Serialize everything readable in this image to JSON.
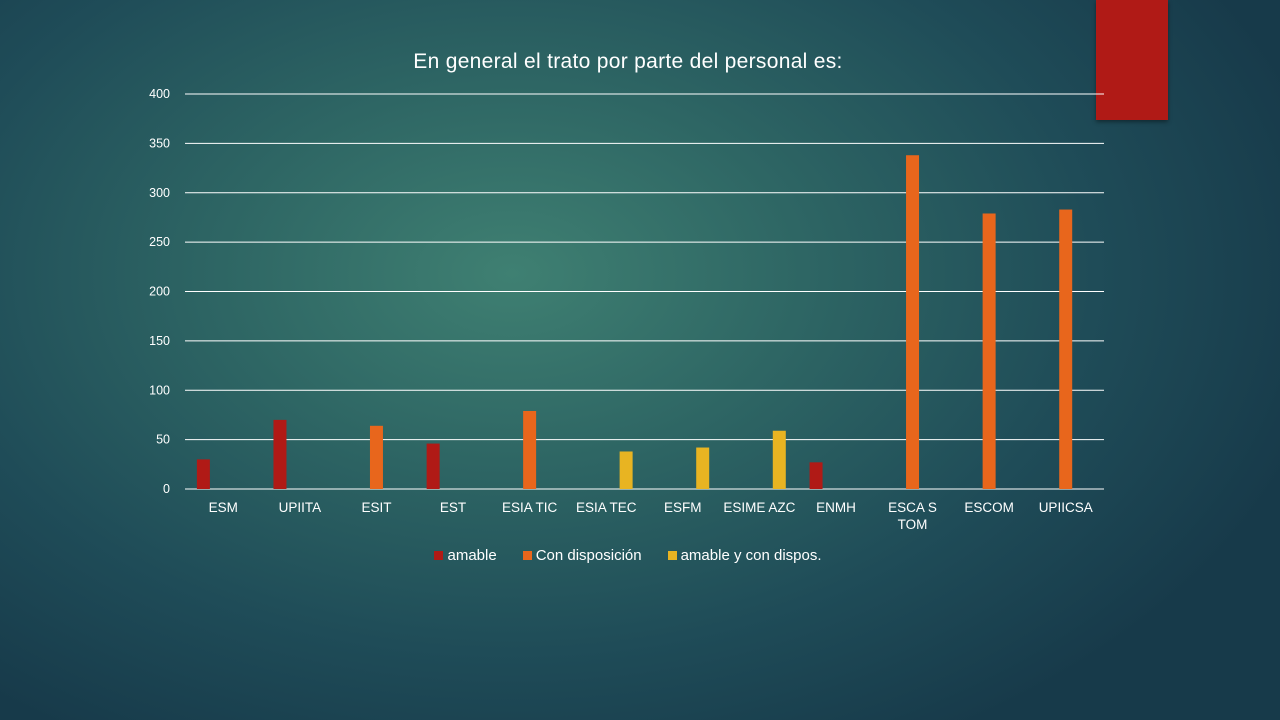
{
  "chart_data": {
    "type": "bar",
    "title": "En general el trato por parte del personal es:",
    "xlabel": "",
    "ylabel": "",
    "ylim": [
      0,
      400
    ],
    "yticks": [
      0,
      50,
      100,
      150,
      200,
      250,
      300,
      350,
      400
    ],
    "grid": true,
    "legend_position": "bottom",
    "categories": [
      "ESM",
      "UPIITA",
      "ESIT",
      "EST",
      "ESIA TIC",
      "ESIA TEC",
      "ESFM",
      "ESIME AZC",
      "ENMH",
      "ESCA S TOM",
      "ESCOM",
      "UPIICSA"
    ],
    "series": [
      {
        "name": "amable",
        "color": "#b01a16",
        "values": [
          30,
          70,
          null,
          46,
          null,
          null,
          null,
          null,
          27,
          null,
          null,
          null
        ]
      },
      {
        "name": "Con disposición",
        "color": "#e8661c",
        "values": [
          null,
          null,
          64,
          null,
          79,
          null,
          null,
          null,
          null,
          338,
          279,
          283
        ]
      },
      {
        "name": "amable y con dispos.",
        "color": "#e8b422",
        "values": [
          null,
          null,
          null,
          null,
          null,
          38,
          42,
          59,
          null,
          null,
          null,
          null
        ]
      }
    ]
  }
}
